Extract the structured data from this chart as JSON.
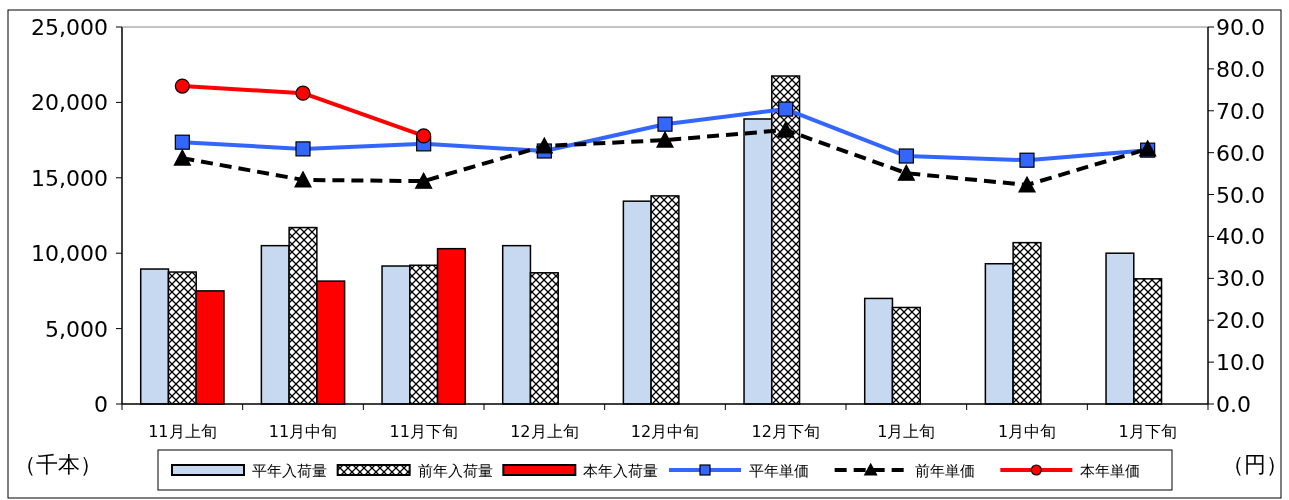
{
  "chart_data": {
    "type": "bar",
    "categories": [
      "11月上旬",
      "11月中旬",
      "11月下旬",
      "12月上旬",
      "12月中旬",
      "12月下旬",
      "1月上旬",
      "1月中旬",
      "1月下旬"
    ],
    "ylabel": "（千本）",
    "y2label": "（円）",
    "ylim": [
      0,
      25000
    ],
    "yticks": [
      {
        "value": 0,
        "label": "0"
      },
      {
        "value": 5000,
        "label": "5,000"
      },
      {
        "value": 10000,
        "label": "10,000"
      },
      {
        "value": 15000,
        "label": "15,000"
      },
      {
        "value": 20000,
        "label": "20,000"
      },
      {
        "value": 25000,
        "label": "25,000"
      }
    ],
    "y2lim": [
      0,
      90
    ],
    "y2ticks": [
      {
        "value": 0,
        "label": "0.0"
      },
      {
        "value": 10,
        "label": "10.0"
      },
      {
        "value": 20,
        "label": "20.0"
      },
      {
        "value": 30,
        "label": "30.0"
      },
      {
        "value": 40,
        "label": "40.0"
      },
      {
        "value": 50,
        "label": "50.0"
      },
      {
        "value": 60,
        "label": "60.0"
      },
      {
        "value": 70,
        "label": "70.0"
      },
      {
        "value": 80,
        "label": "80.0"
      },
      {
        "value": 90,
        "label": "90.0"
      }
    ],
    "grid": false,
    "legend": "bottom",
    "series": [
      {
        "name": "平年入荷量",
        "color": "#c6d9f1",
        "values": [
          8950,
          10500,
          9150,
          10500,
          13450,
          18900,
          7000,
          9300,
          10000
        ]
      },
      {
        "name": "前年入荷量",
        "color": "#000000",
        "values": [
          8750,
          11700,
          9200,
          8700,
          13800,
          21750,
          6400,
          10700,
          8300
        ]
      },
      {
        "name": "本年入荷量",
        "color": "#ff0000",
        "values": [
          7500,
          8150,
          10300,
          null,
          null,
          null,
          null,
          null,
          null
        ]
      },
      {
        "name": "平年単価",
        "type": "line",
        "axis": "y2",
        "color": "#3366ff",
        "marker": "square",
        "line_style": "solid",
        "values": [
          62.5,
          60.9,
          62.1,
          60.4,
          66.8,
          70.4,
          59.2,
          58.2,
          60.6
        ]
      },
      {
        "name": "前年単価",
        "type": "line",
        "axis": "y2",
        "color": "#000000",
        "marker": "triangle",
        "line_style": "dashed",
        "values": [
          58.7,
          53.5,
          53.2,
          61.6,
          63.0,
          65.4,
          55.1,
          52.3,
          60.9
        ]
      },
      {
        "name": "本年単価",
        "type": "line",
        "axis": "y2",
        "color": "#ff0000",
        "marker": "circle",
        "line_style": "solid",
        "values": [
          75.9,
          74.2,
          64.0,
          null,
          null,
          null,
          null,
          null,
          null
        ]
      }
    ]
  }
}
